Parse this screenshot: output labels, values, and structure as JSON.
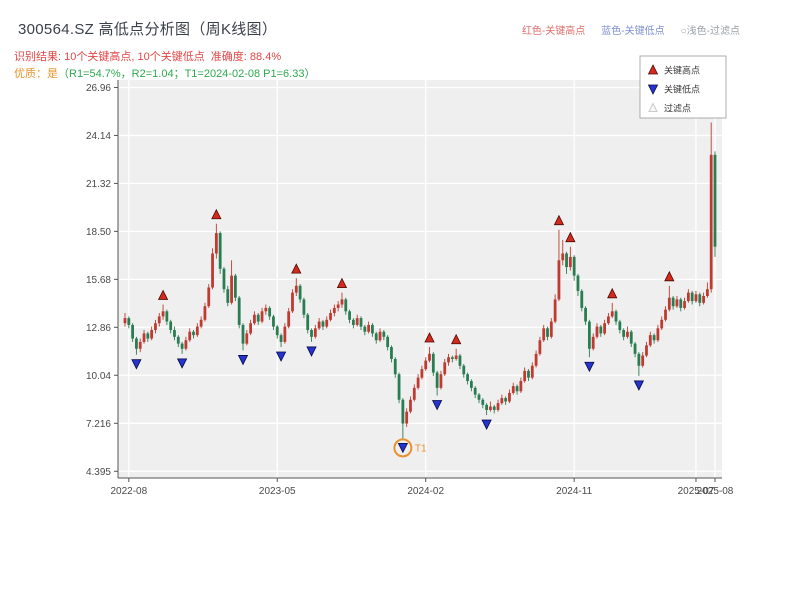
{
  "header": {
    "title": "300564.SZ 高低点分析图（周K线图）",
    "inline_legend": [
      {
        "label": "红色-关键高点",
        "color": "#e06c6c"
      },
      {
        "label": "蓝色-关键低点",
        "color": "#7e8fd0"
      },
      {
        "label": "○浅色-过滤点",
        "color": "#9aa0a6"
      }
    ],
    "result_line": "识别结果: 10个关键高点, 10个关键低点  准确度: 88.4%",
    "result_color": "#e24646",
    "quality_label": "优质：是",
    "quality_label_color": "#e8962e",
    "quality_detail": "（R1=54.7%，R2=1.04；T1=2024-02-08 P1=6.33）",
    "quality_detail_color": "#2fa84f"
  },
  "chart_data": {
    "type": "candlestick",
    "symbol": "300564.SZ",
    "period": "weekly",
    "title": "300564.SZ 高低点分析图（周K线图）",
    "grid": true,
    "legend_position": "upper-right",
    "plot_bg": "#efefef",
    "grid_color": "#ffffff",
    "up_color": "#bf3b32",
    "down_color": "#2a7d52",
    "high_marker_color": "#d42a1e",
    "low_marker_color": "#2633cf",
    "filtered_marker_color": "#c9c9c9",
    "ylim": [
      4.0,
      27.4
    ],
    "y_tick_labels": [
      "26.96",
      "24.14",
      "21.32",
      "18.50",
      "15.68",
      "12.86",
      "10.04",
      "7.216",
      "4.395"
    ],
    "y_tick_values": [
      26.96,
      24.14,
      21.32,
      18.5,
      15.68,
      12.86,
      10.04,
      7.216,
      4.395
    ],
    "x_ticks": [
      {
        "index": 1,
        "label": "2022-08"
      },
      {
        "index": 40,
        "label": "2023-05"
      },
      {
        "index": 79,
        "label": "2024-02"
      },
      {
        "index": 118,
        "label": "2024-11"
      },
      {
        "index": 150,
        "label": "2025-07"
      },
      {
        "index": 155,
        "label": "2025-08"
      }
    ],
    "legend": [
      {
        "label": "关键高点",
        "marker": "up-triangle",
        "color": "#d42a1e"
      },
      {
        "label": "关键低点",
        "marker": "down-triangle",
        "color": "#2633cf"
      },
      {
        "label": "过滤点",
        "marker": "hollow-triangle",
        "color": "#c9c9c9"
      }
    ],
    "candles": [
      [
        13.1,
        13.7,
        12.9,
        13.4
      ],
      [
        13.4,
        13.5,
        12.8,
        13.0
      ],
      [
        13.0,
        13.1,
        12.0,
        12.2
      ],
      [
        12.2,
        12.3,
        11.25,
        11.6
      ],
      [
        11.6,
        12.2,
        11.4,
        12.0
      ],
      [
        12.0,
        12.7,
        11.9,
        12.5
      ],
      [
        12.5,
        12.6,
        12.0,
        12.2
      ],
      [
        12.2,
        12.9,
        12.1,
        12.7
      ],
      [
        12.7,
        13.3,
        12.5,
        13.1
      ],
      [
        13.1,
        13.7,
        12.9,
        13.5
      ],
      [
        13.5,
        14.2,
        13.3,
        13.8
      ],
      [
        13.8,
        13.9,
        13.0,
        13.2
      ],
      [
        13.2,
        13.3,
        12.5,
        12.7
      ],
      [
        12.7,
        12.9,
        12.1,
        12.3
      ],
      [
        12.3,
        12.4,
        11.7,
        11.9
      ],
      [
        11.9,
        12.0,
        11.3,
        11.6
      ],
      [
        11.6,
        12.3,
        11.5,
        12.1
      ],
      [
        12.1,
        12.8,
        12.0,
        12.6
      ],
      [
        12.6,
        12.7,
        12.2,
        12.4
      ],
      [
        12.4,
        13.1,
        12.3,
        12.9
      ],
      [
        12.9,
        13.5,
        12.8,
        13.3
      ],
      [
        13.3,
        14.3,
        13.2,
        14.1
      ],
      [
        14.1,
        15.4,
        14.0,
        15.2
      ],
      [
        15.2,
        17.5,
        15.1,
        17.2
      ],
      [
        17.2,
        18.95,
        16.9,
        18.4
      ],
      [
        18.4,
        18.5,
        16.0,
        16.3
      ],
      [
        16.3,
        16.4,
        14.9,
        15.1
      ],
      [
        15.1,
        15.3,
        14.1,
        14.3
      ],
      [
        14.3,
        16.8,
        14.2,
        15.9
      ],
      [
        15.9,
        16.0,
        14.4,
        14.6
      ],
      [
        14.6,
        14.7,
        12.8,
        13.0
      ],
      [
        13.0,
        13.1,
        11.5,
        11.9
      ],
      [
        11.9,
        12.7,
        11.8,
        12.5
      ],
      [
        12.5,
        13.3,
        12.4,
        13.1
      ],
      [
        13.1,
        13.8,
        13.0,
        13.6
      ],
      [
        13.6,
        13.7,
        13.0,
        13.2
      ],
      [
        13.2,
        14.0,
        13.1,
        13.8
      ],
      [
        13.8,
        14.2,
        13.6,
        14.0
      ],
      [
        14.0,
        14.1,
        13.3,
        13.5
      ],
      [
        13.5,
        13.6,
        12.7,
        12.9
      ],
      [
        12.9,
        13.0,
        12.2,
        12.4
      ],
      [
        12.4,
        12.5,
        11.7,
        12.0
      ],
      [
        12.0,
        13.1,
        11.9,
        12.9
      ],
      [
        12.9,
        14.0,
        12.8,
        13.8
      ],
      [
        13.8,
        15.1,
        13.7,
        14.9
      ],
      [
        14.9,
        15.75,
        14.7,
        15.3
      ],
      [
        15.3,
        15.4,
        14.3,
        14.5
      ],
      [
        14.5,
        14.6,
        13.4,
        13.6
      ],
      [
        13.6,
        13.7,
        12.5,
        12.7
      ],
      [
        12.7,
        12.8,
        12.0,
        12.3
      ],
      [
        12.3,
        13.0,
        12.2,
        12.8
      ],
      [
        12.8,
        13.4,
        12.7,
        13.2
      ],
      [
        13.2,
        13.3,
        12.7,
        12.9
      ],
      [
        12.9,
        13.5,
        12.8,
        13.3
      ],
      [
        13.3,
        13.9,
        13.2,
        13.7
      ],
      [
        13.7,
        14.2,
        13.5,
        14.0
      ],
      [
        14.0,
        14.4,
        13.8,
        14.2
      ],
      [
        14.2,
        14.9,
        14.0,
        14.5
      ],
      [
        14.5,
        14.6,
        13.6,
        13.8
      ],
      [
        13.8,
        13.9,
        13.1,
        13.3
      ],
      [
        13.3,
        13.4,
        12.8,
        13.0
      ],
      [
        13.0,
        13.6,
        12.9,
        13.4
      ],
      [
        13.4,
        13.5,
        12.7,
        12.9
      ],
      [
        12.9,
        13.0,
        12.4,
        12.6
      ],
      [
        12.6,
        13.2,
        12.5,
        13.0
      ],
      [
        13.0,
        13.1,
        12.3,
        12.5
      ],
      [
        12.5,
        12.6,
        11.9,
        12.1
      ],
      [
        12.1,
        12.8,
        12.0,
        12.6
      ],
      [
        12.6,
        12.7,
        12.1,
        12.3
      ],
      [
        12.3,
        12.4,
        11.5,
        11.7
      ],
      [
        11.7,
        11.8,
        10.8,
        11.0
      ],
      [
        11.0,
        11.1,
        9.9,
        10.1
      ],
      [
        10.1,
        10.2,
        8.4,
        8.6
      ],
      [
        8.6,
        8.7,
        6.33,
        7.2
      ],
      [
        7.2,
        8.1,
        7.0,
        7.9
      ],
      [
        7.9,
        8.8,
        7.8,
        8.6
      ],
      [
        8.6,
        9.5,
        8.5,
        9.3
      ],
      [
        9.3,
        10.1,
        9.2,
        9.9
      ],
      [
        9.9,
        10.6,
        9.8,
        10.4
      ],
      [
        10.4,
        11.1,
        10.3,
        10.9
      ],
      [
        10.9,
        11.7,
        10.8,
        11.3
      ],
      [
        11.3,
        11.4,
        10.0,
        10.2
      ],
      [
        10.2,
        10.3,
        8.85,
        9.3
      ],
      [
        9.3,
        10.3,
        9.2,
        10.1
      ],
      [
        10.1,
        11.0,
        10.0,
        10.8
      ],
      [
        10.8,
        11.3,
        10.6,
        11.1
      ],
      [
        11.1,
        11.2,
        10.8,
        11.0
      ],
      [
        11.0,
        11.6,
        10.9,
        11.2
      ],
      [
        11.2,
        11.3,
        10.4,
        10.6
      ],
      [
        10.6,
        10.7,
        9.9,
        10.1
      ],
      [
        10.1,
        10.2,
        9.5,
        9.7
      ],
      [
        9.7,
        9.8,
        9.1,
        9.3
      ],
      [
        9.3,
        9.4,
        8.7,
        8.9
      ],
      [
        8.9,
        9.0,
        8.4,
        8.6
      ],
      [
        8.6,
        8.7,
        8.1,
        8.3
      ],
      [
        8.3,
        8.4,
        7.7,
        8.0
      ],
      [
        8.0,
        8.5,
        7.9,
        8.2
      ],
      [
        8.2,
        8.3,
        7.8,
        8.0
      ],
      [
        8.0,
        8.6,
        7.9,
        8.4
      ],
      [
        8.4,
        8.9,
        8.3,
        8.7
      ],
      [
        8.7,
        8.8,
        8.3,
        8.5
      ],
      [
        8.5,
        9.2,
        8.4,
        9.0
      ],
      [
        9.0,
        9.6,
        8.9,
        9.4
      ],
      [
        9.4,
        9.5,
        8.9,
        9.1
      ],
      [
        9.1,
        9.9,
        9.0,
        9.7
      ],
      [
        9.7,
        10.5,
        9.6,
        10.3
      ],
      [
        10.3,
        10.4,
        9.7,
        9.9
      ],
      [
        9.9,
        10.8,
        9.8,
        10.6
      ],
      [
        10.6,
        11.5,
        10.5,
        11.3
      ],
      [
        11.3,
        12.3,
        11.2,
        12.1
      ],
      [
        12.1,
        13.0,
        12.0,
        12.8
      ],
      [
        12.8,
        12.9,
        12.1,
        12.3
      ],
      [
        12.3,
        13.4,
        12.2,
        13.2
      ],
      [
        13.2,
        14.8,
        13.1,
        14.5
      ],
      [
        14.5,
        18.6,
        14.4,
        16.8
      ],
      [
        16.8,
        18.0,
        16.5,
        17.2
      ],
      [
        17.2,
        17.3,
        16.0,
        16.4
      ],
      [
        16.4,
        17.6,
        16.2,
        17.0
      ],
      [
        17.0,
        17.1,
        15.6,
        15.9
      ],
      [
        15.9,
        16.0,
        14.7,
        15.0
      ],
      [
        15.0,
        15.1,
        13.8,
        14.0
      ],
      [
        14.0,
        14.1,
        13.0,
        13.2
      ],
      [
        13.2,
        13.3,
        11.1,
        11.6
      ],
      [
        11.6,
        12.5,
        11.5,
        12.3
      ],
      [
        12.3,
        13.1,
        12.2,
        12.9
      ],
      [
        12.9,
        13.0,
        12.3,
        12.5
      ],
      [
        12.5,
        13.3,
        12.4,
        13.1
      ],
      [
        13.1,
        13.7,
        13.0,
        13.5
      ],
      [
        13.5,
        14.3,
        13.4,
        13.8
      ],
      [
        13.8,
        13.9,
        13.0,
        13.2
      ],
      [
        13.2,
        13.3,
        12.5,
        12.7
      ],
      [
        12.7,
        12.8,
        12.1,
        12.3
      ],
      [
        12.3,
        12.9,
        12.2,
        12.6
      ],
      [
        12.6,
        12.7,
        11.7,
        11.9
      ],
      [
        11.9,
        12.0,
        11.1,
        11.3
      ],
      [
        11.3,
        11.4,
        10.0,
        10.6
      ],
      [
        10.6,
        11.4,
        10.5,
        11.2
      ],
      [
        11.2,
        12.0,
        11.1,
        11.8
      ],
      [
        11.8,
        12.6,
        11.7,
        12.4
      ],
      [
        12.4,
        12.5,
        11.9,
        12.1
      ],
      [
        12.1,
        13.0,
        12.0,
        12.8
      ],
      [
        12.8,
        13.5,
        12.7,
        13.3
      ],
      [
        13.3,
        14.1,
        13.2,
        13.9
      ],
      [
        13.9,
        15.3,
        13.8,
        14.6
      ],
      [
        14.6,
        14.7,
        13.9,
        14.1
      ],
      [
        14.1,
        14.7,
        14.0,
        14.5
      ],
      [
        14.5,
        14.6,
        13.8,
        14.0
      ],
      [
        14.0,
        14.6,
        13.9,
        14.4
      ],
      [
        14.4,
        15.1,
        14.3,
        14.9
      ],
      [
        14.9,
        15.0,
        14.2,
        14.4
      ],
      [
        14.4,
        15.0,
        14.3,
        14.8
      ],
      [
        14.8,
        14.9,
        14.1,
        14.3
      ],
      [
        14.3,
        14.9,
        14.2,
        14.7
      ],
      [
        14.7,
        15.5,
        14.6,
        15.1
      ],
      [
        15.1,
        24.9,
        14.9,
        23.0
      ],
      [
        23.0,
        23.2,
        17.0,
        17.6
      ]
    ],
    "key_highs": [
      {
        "index": 10,
        "price": 14.2
      },
      {
        "index": 24,
        "price": 18.95
      },
      {
        "index": 45,
        "price": 15.75
      },
      {
        "index": 57,
        "price": 14.9
      },
      {
        "index": 80,
        "price": 11.7
      },
      {
        "index": 87,
        "price": 11.6
      },
      {
        "index": 114,
        "price": 18.6
      },
      {
        "index": 117,
        "price": 17.6
      },
      {
        "index": 128,
        "price": 14.3
      },
      {
        "index": 143,
        "price": 15.3
      }
    ],
    "key_lows": [
      {
        "index": 3,
        "price": 11.25
      },
      {
        "index": 15,
        "price": 11.3
      },
      {
        "index": 31,
        "price": 11.5
      },
      {
        "index": 41,
        "price": 11.7
      },
      {
        "index": 49,
        "price": 12.0
      },
      {
        "index": 73,
        "price": 6.33
      },
      {
        "index": 82,
        "price": 8.85
      },
      {
        "index": 95,
        "price": 7.7
      },
      {
        "index": 122,
        "price": 11.1
      },
      {
        "index": 135,
        "price": 10.0
      }
    ],
    "t1": {
      "index": 73,
      "price": 6.33,
      "label": "T1",
      "color": "#e8912d"
    }
  }
}
